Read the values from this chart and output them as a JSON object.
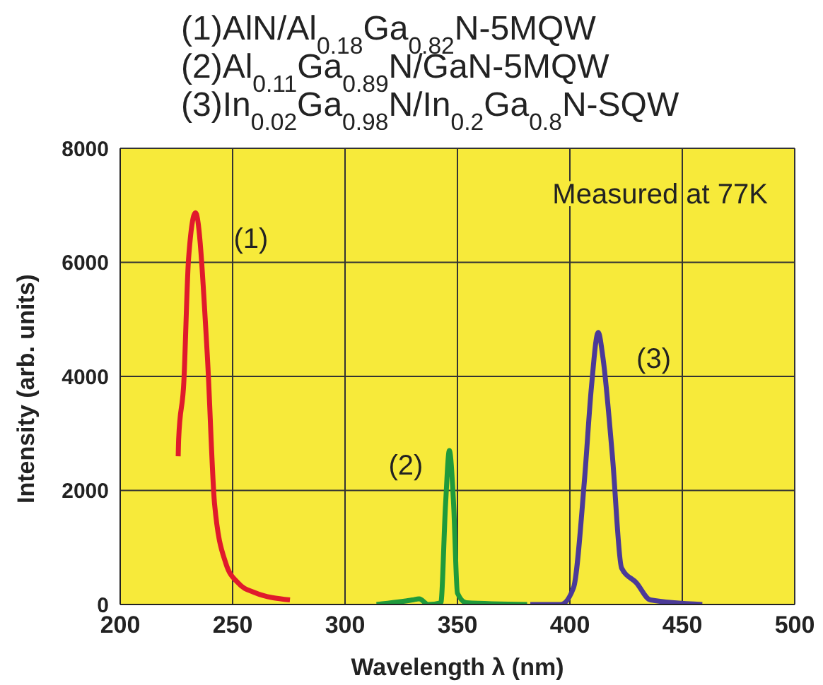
{
  "chart_data": {
    "type": "line",
    "title": "(1)AlN/Al$_{0.18}$Ga$_{0.82}$N-5MQW\n(2)Al$_{0.11}$Ga$_{0.89}$N/GaN-5MQW\n(3)In$_{0.02}$Ga$_{0.98}$N/In$_{0.2}$Ga$_{0.8}$N-SQW",
    "xlabel": "Wavelength λ (nm)",
    "ylabel": "Intensity (arb. units)",
    "annotations": [
      "Measured at 77K"
    ],
    "series": [
      {
        "name": "(1)",
        "color": "#e01a2c",
        "x": [
          225.8,
          226,
          228.3,
          230.4,
          233.5,
          238.8,
          242,
          247,
          252.4,
          259.7,
          275.5
        ],
        "values": [
          2600,
          2900,
          3900,
          6060,
          6870,
          4330,
          1750,
          720,
          380,
          210,
          80
        ]
      },
      {
        "name": "(2)",
        "color": "#1f9a3c",
        "x": [
          314,
          330,
          333,
          337,
          342.6,
          344.7,
          346.4,
          348.3,
          350,
          354,
          381
        ],
        "values": [
          0,
          80,
          100,
          0,
          30,
          1750,
          2700,
          1750,
          200,
          30,
          0
        ]
      },
      {
        "name": "(3)",
        "color": "#4b3a98",
        "x": [
          382.4,
          396,
          401.6,
          406.5,
          409.6,
          412.6,
          414.7,
          418.9,
          423,
          429.6,
          435.8,
          458.9
        ],
        "values": [
          0,
          0,
          290,
          2190,
          3820,
          4770,
          4330,
          2610,
          640,
          380,
          80,
          0
        ]
      }
    ],
    "xlim": [
      200,
      500
    ],
    "xticks": [
      200,
      250,
      300,
      350,
      400,
      450,
      500
    ],
    "ylim": [
      0,
      8000
    ],
    "yticks": [
      0,
      2000,
      4000,
      6000,
      8000
    ],
    "grid": true,
    "marker": "none",
    "line_style": "solid"
  }
}
